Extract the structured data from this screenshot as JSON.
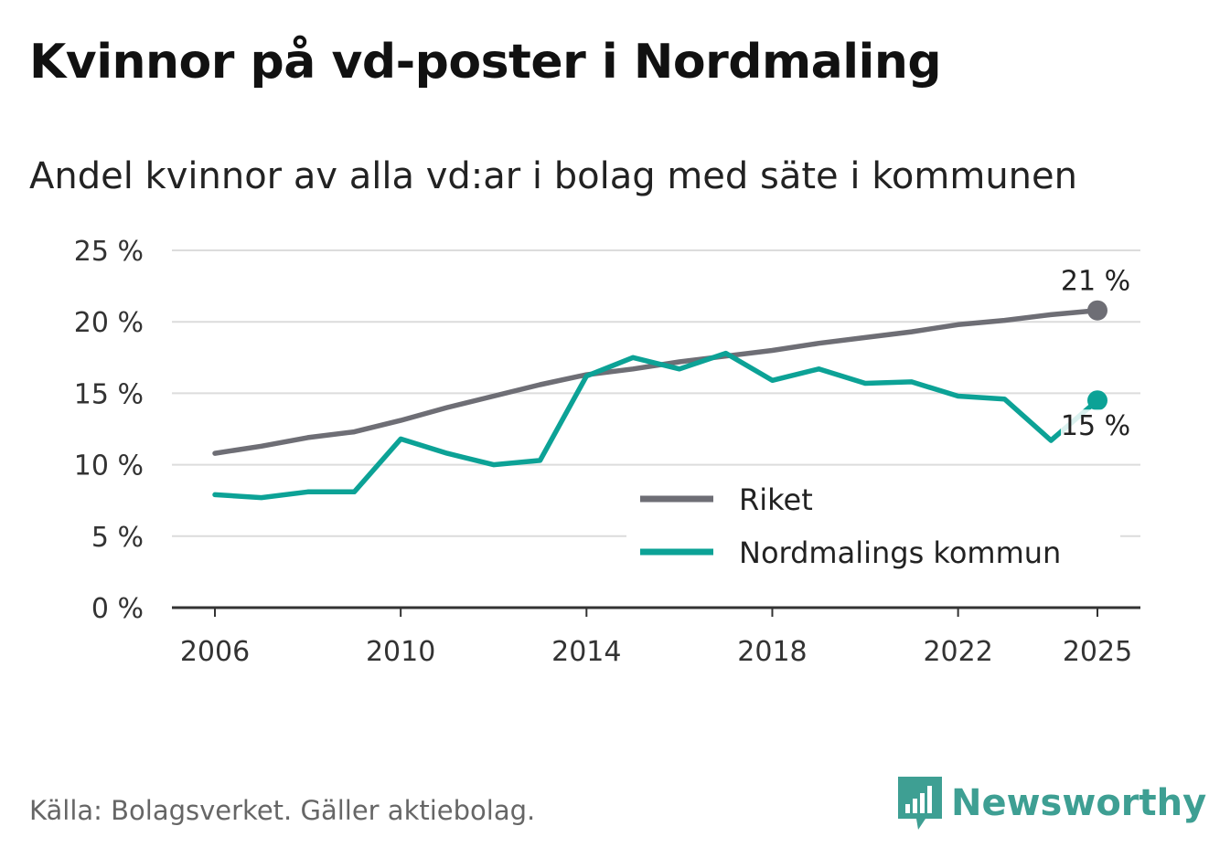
{
  "title": "Kvinnor på vd-poster i Nordmaling",
  "subtitle": "Andel kvinnor av alla vd:ar i bolag med säte i kommunen",
  "source": "Källa: Bolagsverket. Gäller aktiebolag.",
  "brand": "Newsworthy",
  "colors": {
    "riket": "#6e6e75",
    "kommun": "#0ca296",
    "grid": "#dcdcdc",
    "axis": "#333333"
  },
  "chart_data": {
    "type": "line",
    "title": "Andel kvinnor av alla vd:ar i bolag med säte i kommunen",
    "xlabel": "",
    "ylabel": "",
    "ylim": [
      0,
      25
    ],
    "xlim": [
      2006,
      2025
    ],
    "y_ticks": [
      0,
      5,
      10,
      15,
      20,
      25
    ],
    "y_tick_labels": [
      "0 %",
      "5 %",
      "10 %",
      "15 %",
      "20 %",
      "25 %"
    ],
    "x_ticks": [
      2006,
      2010,
      2014,
      2018,
      2022,
      2025
    ],
    "x_tick_labels": [
      "2006",
      "2010",
      "2014",
      "2018",
      "2022",
      "2025"
    ],
    "grid": true,
    "legend_position": "bottom-right",
    "x": [
      2006,
      2007,
      2008,
      2009,
      2010,
      2011,
      2012,
      2013,
      2014,
      2015,
      2016,
      2017,
      2018,
      2019,
      2020,
      2021,
      2022,
      2023,
      2024,
      2025
    ],
    "series": [
      {
        "name": "Riket",
        "color": "#6e6e75",
        "values": [
          10.8,
          11.3,
          11.9,
          12.3,
          13.1,
          14.0,
          14.8,
          15.6,
          16.3,
          16.7,
          17.2,
          17.6,
          18.0,
          18.5,
          18.9,
          19.3,
          19.8,
          20.1,
          20.5,
          20.8
        ],
        "end_label": "21 %"
      },
      {
        "name": "Nordmalings kommun",
        "color": "#0ca296",
        "values": [
          7.9,
          7.7,
          8.1,
          8.1,
          11.8,
          10.8,
          10.0,
          10.3,
          16.2,
          17.5,
          16.7,
          17.8,
          15.9,
          16.7,
          15.7,
          15.8,
          14.8,
          14.6,
          11.7,
          14.5
        ],
        "end_label": "15 %"
      }
    ]
  }
}
